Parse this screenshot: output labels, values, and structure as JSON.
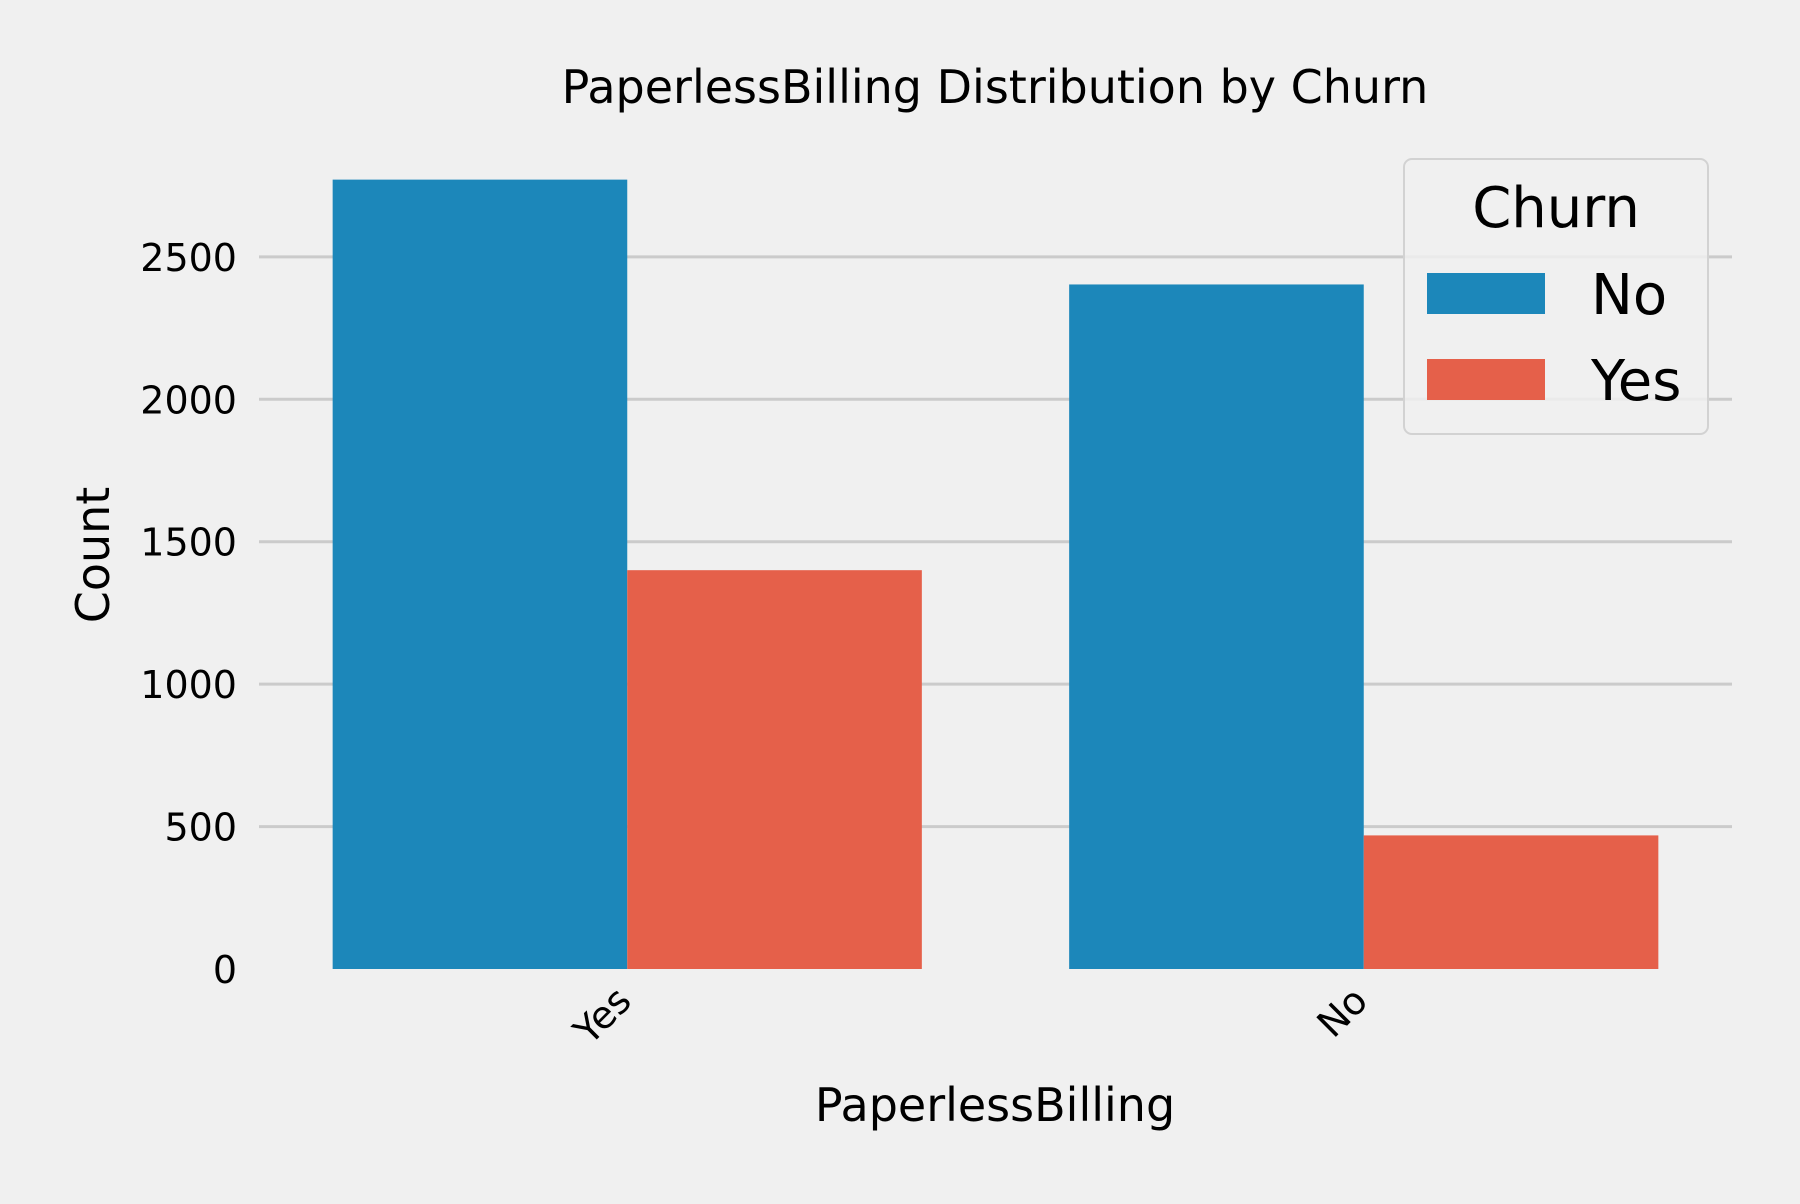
{
  "chart_data": {
    "type": "bar",
    "title": "PaperlessBilling Distribution by Churn",
    "xlabel": "PaperlessBilling",
    "ylabel": "Count",
    "categories": [
      "Yes",
      "No"
    ],
    "series": [
      {
        "name": "No",
        "values": [
          2771,
          2403
        ],
        "color": "#1c87ba"
      },
      {
        "name": "Yes",
        "values": [
          1400,
          469
        ],
        "color": "#e5604a"
      }
    ],
    "ylim": [
      0,
      2875
    ],
    "yticks": [
      0,
      500,
      1000,
      1500,
      2000,
      2500
    ],
    "ytick_labels": [
      "0",
      "500",
      "1000",
      "1500",
      "2000",
      "2500"
    ],
    "legend": {
      "title": "Churn",
      "position": "top-right"
    },
    "grid": "horizontal",
    "xtick_rotation": 45
  }
}
